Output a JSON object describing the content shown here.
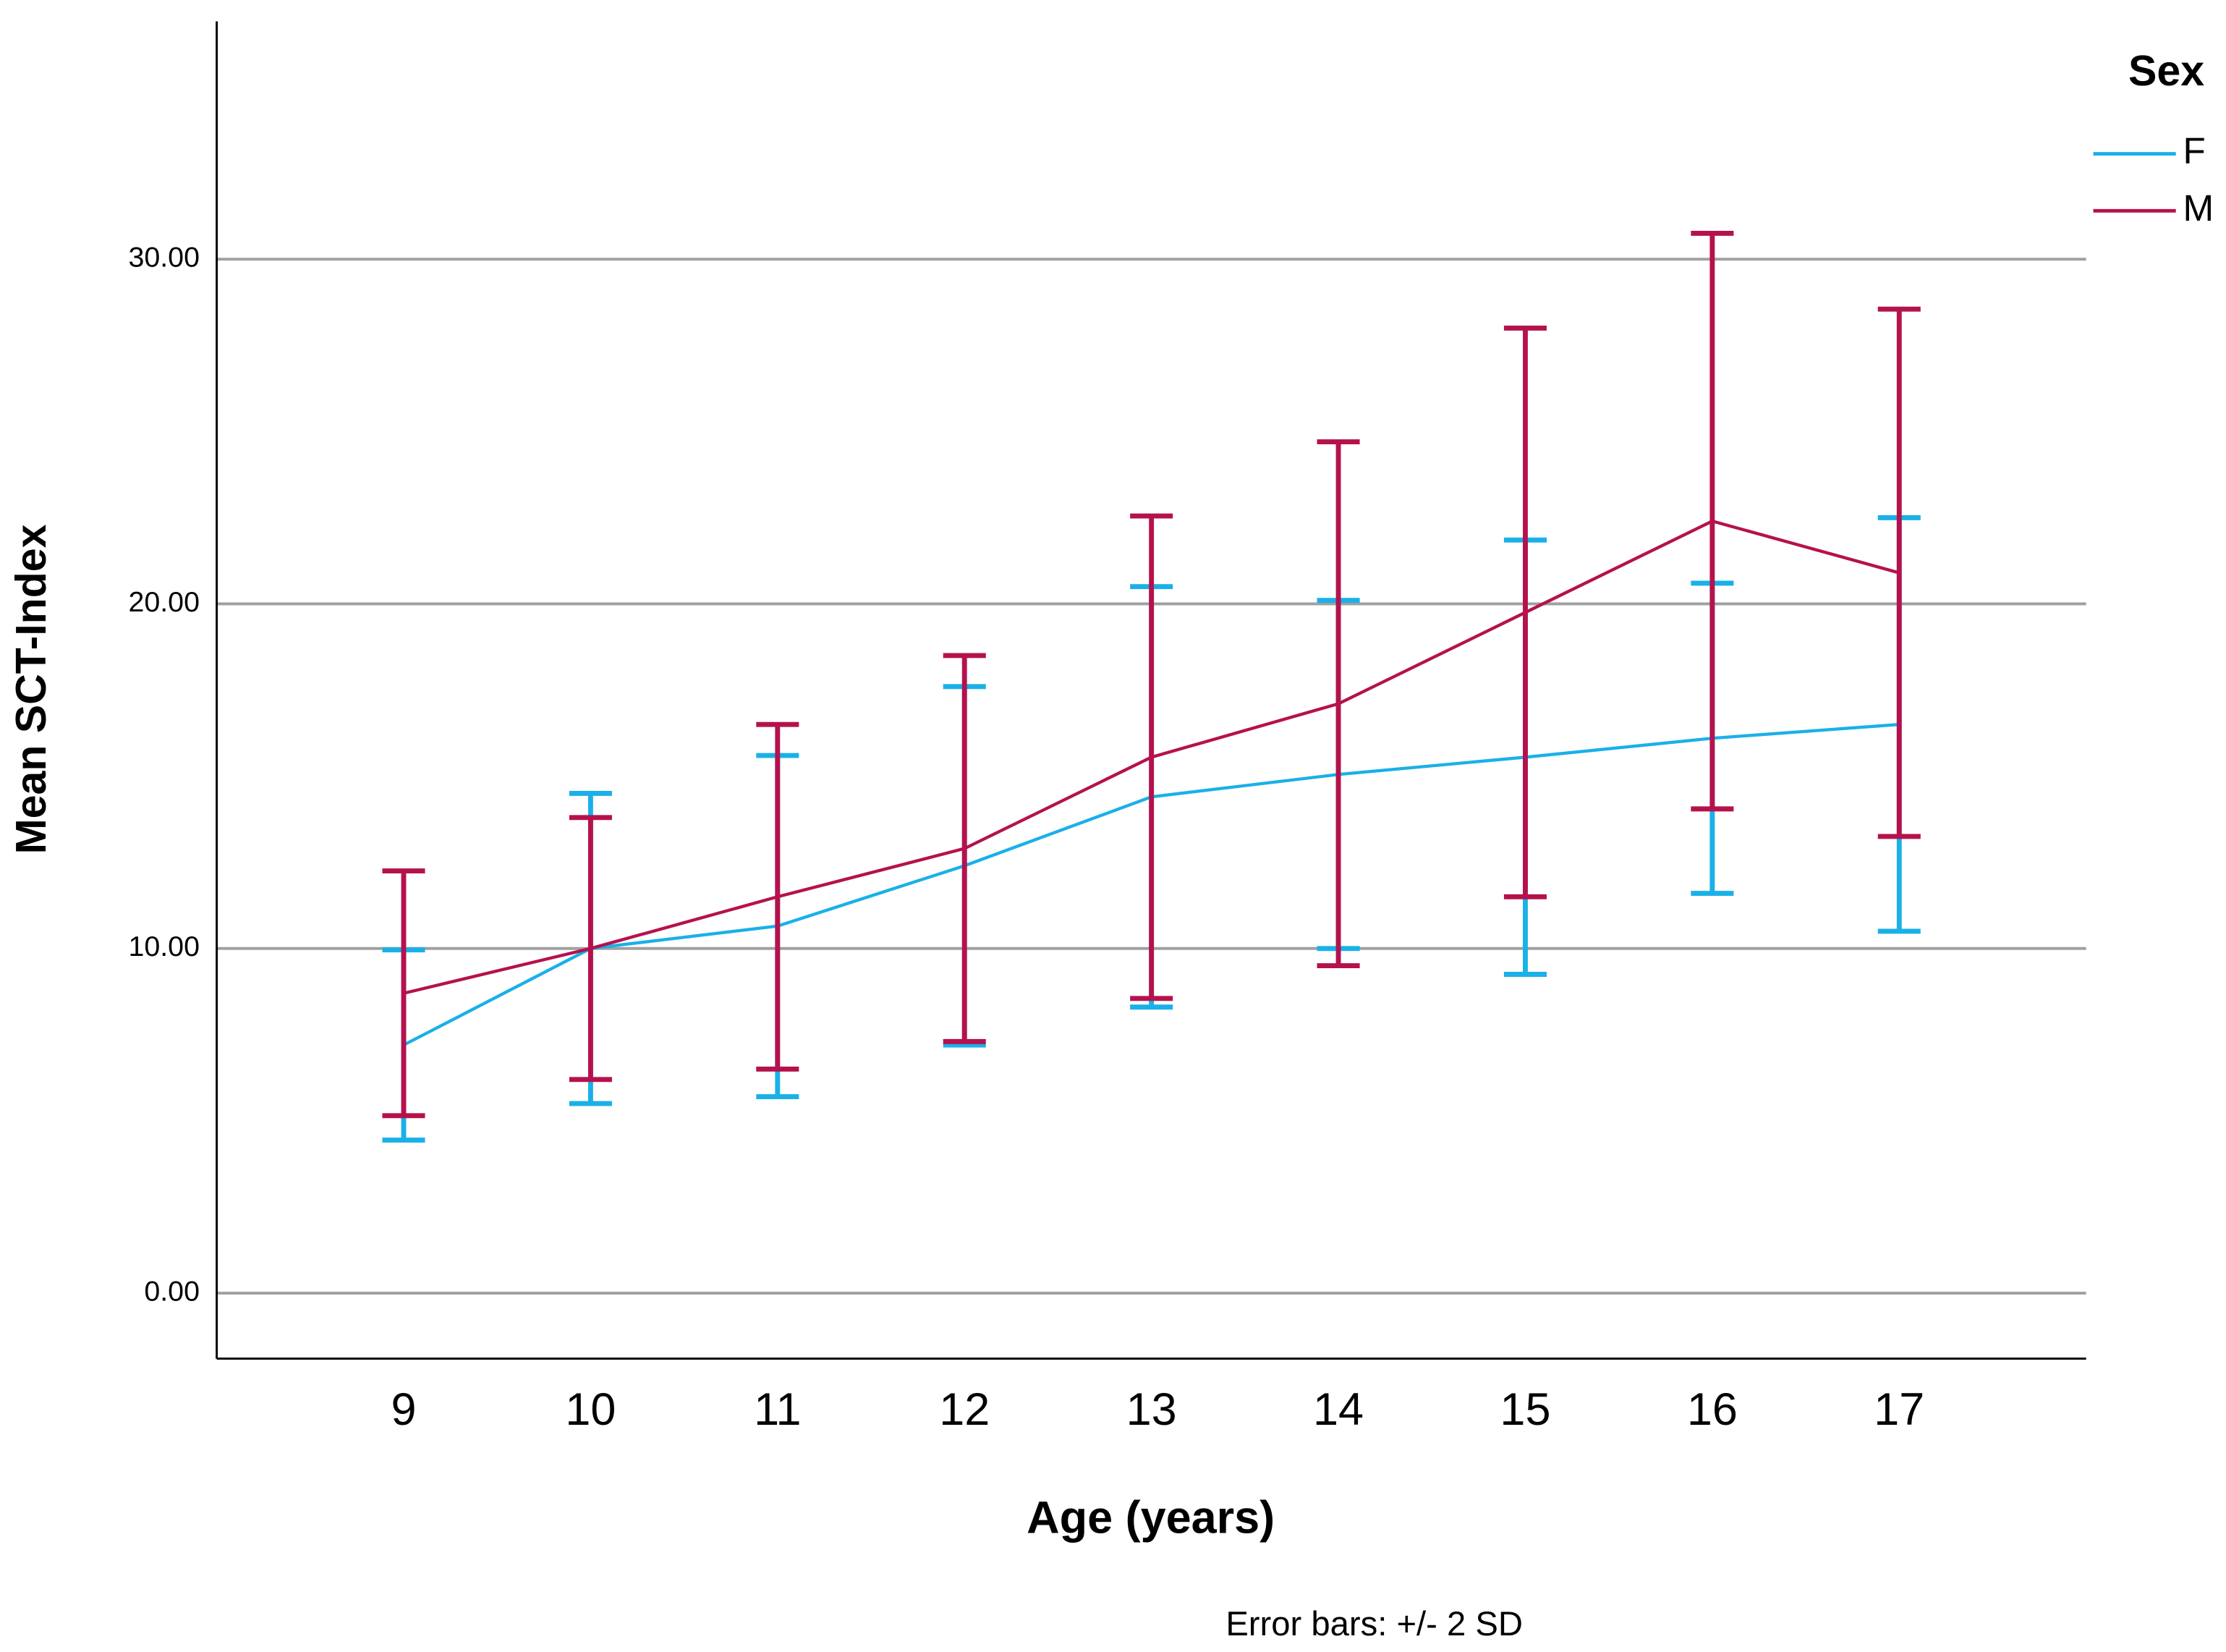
{
  "chart_data": {
    "type": "line",
    "y_label": "Mean SCT-Index",
    "x_label": "Age (years)",
    "footnote": "Error bars: +/- 2 SD",
    "legend_title": "Sex",
    "legend_position": "top-right",
    "grid": true,
    "categories": [
      "9",
      "10",
      "11",
      "12",
      "13",
      "14",
      "15",
      "16",
      "17"
    ],
    "series": [
      {
        "name": "F",
        "color": "#1ab0e8",
        "values": [
          7.2,
          10.0,
          10.65,
          12.4,
          14.4,
          15.05,
          15.55,
          16.1,
          16.5
        ],
        "errors": [
          2.76,
          4.5,
          4.95,
          5.2,
          6.1,
          5.05,
          6.3,
          4.5,
          6.0
        ]
      },
      {
        "name": "M",
        "color": "#b5124d",
        "values": [
          8.7,
          10.0,
          11.5,
          12.9,
          15.55,
          17.1,
          19.75,
          22.4,
          20.9
        ],
        "errors": [
          3.55,
          3.8,
          5.0,
          5.6,
          7.0,
          7.6,
          8.25,
          8.35,
          7.65
        ]
      }
    ],
    "ylim": [
      -1.9,
      36.9
    ],
    "yticks": [
      {
        "value": 0,
        "label": "0.00"
      },
      {
        "value": 10,
        "label": "10.00"
      },
      {
        "value": 20,
        "label": "20.00"
      },
      {
        "value": 30,
        "label": "30.00"
      }
    ]
  }
}
